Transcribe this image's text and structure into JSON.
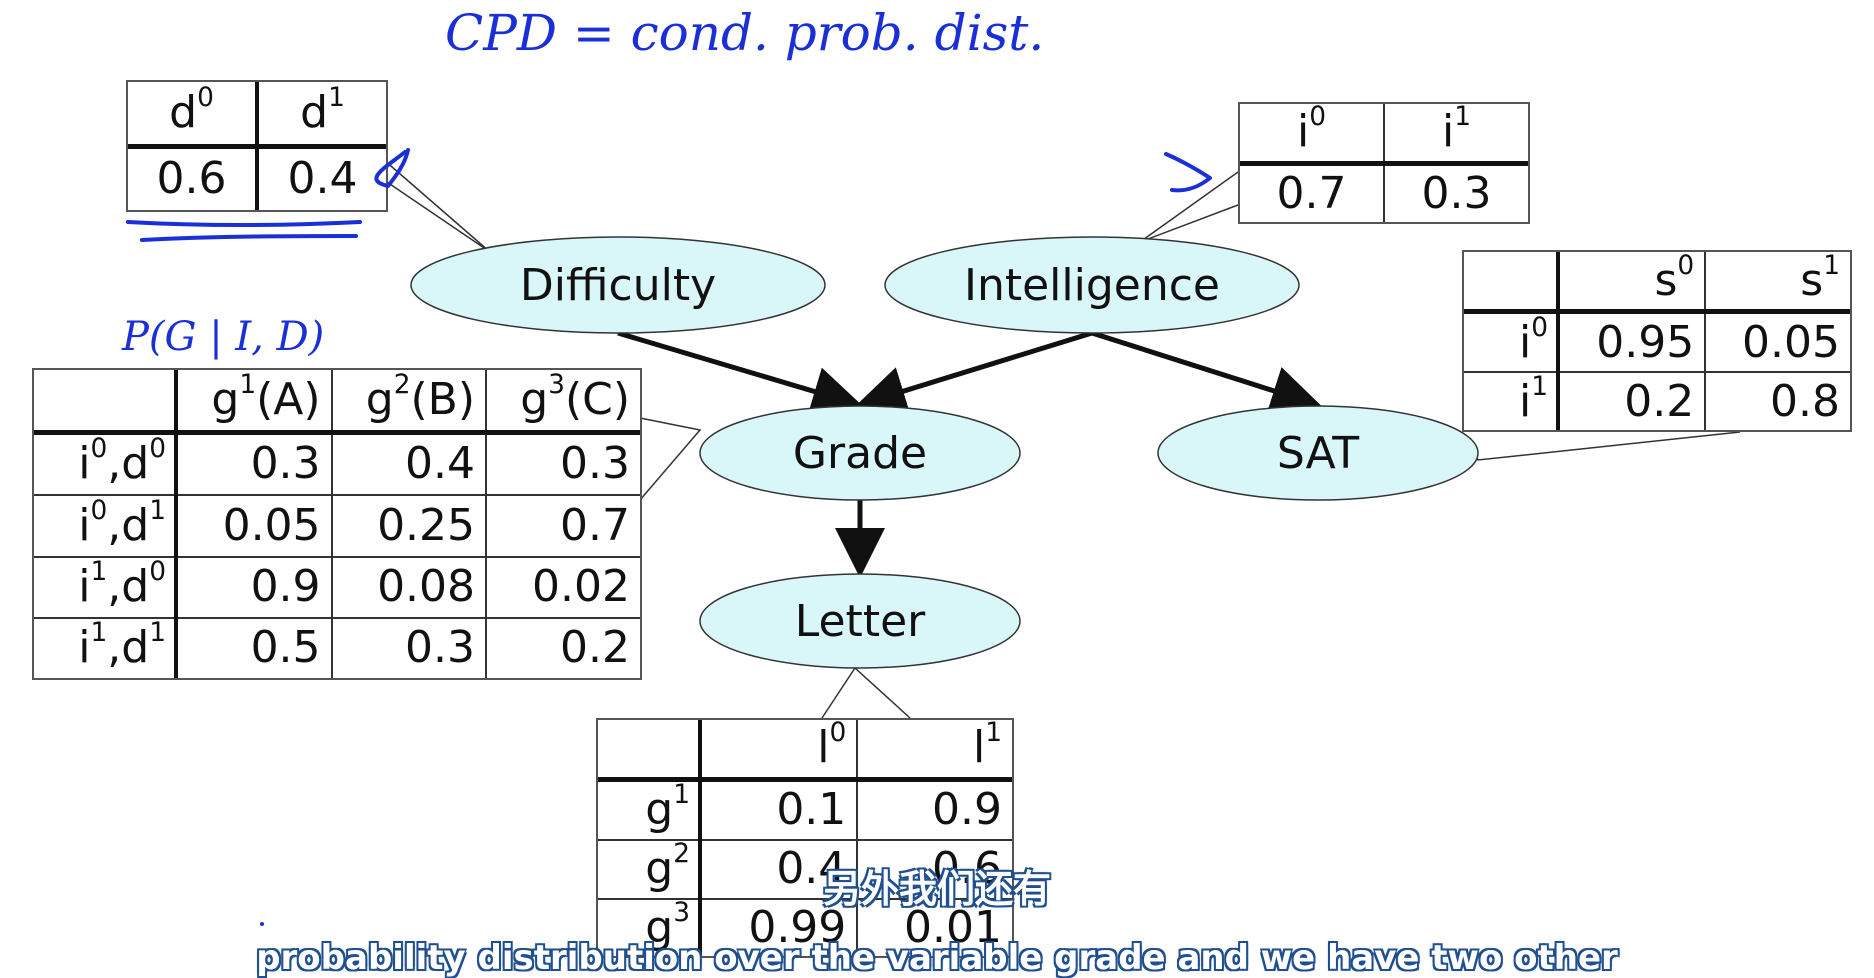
{
  "annotations": {
    "cpd_note": "CPD = cond. prob. dist.",
    "grade_cpd_note": "P(G | I, D)"
  },
  "nodes": {
    "difficulty": "Difficulty",
    "intelligence": "Intelligence",
    "grade": "Grade",
    "sat": "SAT",
    "letter": "Letter"
  },
  "tables": {
    "difficulty": {
      "headers": [
        {
          "base": "d",
          "sup": "0"
        },
        {
          "base": "d",
          "sup": "1"
        }
      ],
      "values": [
        "0.6",
        "0.4"
      ]
    },
    "intelligence": {
      "headers": [
        {
          "base": "i",
          "sup": "0"
        },
        {
          "base": "i",
          "sup": "1"
        }
      ],
      "values": [
        "0.7",
        "0.3"
      ]
    },
    "sat": {
      "headers": [
        {
          "base": "s",
          "sup": "0"
        },
        {
          "base": "s",
          "sup": "1"
        }
      ],
      "rows": [
        {
          "label": {
            "base": "i",
            "sup": "0"
          },
          "values": [
            "0.95",
            "0.05"
          ]
        },
        {
          "label": {
            "base": "i",
            "sup": "1"
          },
          "values": [
            "0.2",
            "0.8"
          ]
        }
      ]
    },
    "grade": {
      "headers": [
        {
          "base": "g",
          "sup": "1",
          "suffix": "(A)"
        },
        {
          "base": "g",
          "sup": "2",
          "suffix": "(B)"
        },
        {
          "base": "g",
          "sup": "3",
          "suffix": "(C)"
        }
      ],
      "rows": [
        {
          "label": {
            "a": "i",
            "asup": "0",
            "b": "d",
            "bsup": "0"
          },
          "values": [
            "0.3",
            "0.4",
            "0.3"
          ]
        },
        {
          "label": {
            "a": "i",
            "asup": "0",
            "b": "d",
            "bsup": "1"
          },
          "values": [
            "0.05",
            "0.25",
            "0.7"
          ]
        },
        {
          "label": {
            "a": "i",
            "asup": "1",
            "b": "d",
            "bsup": "0"
          },
          "values": [
            "0.9",
            "0.08",
            "0.02"
          ]
        },
        {
          "label": {
            "a": "i",
            "asup": "1",
            "b": "d",
            "bsup": "1"
          },
          "values": [
            "0.5",
            "0.3",
            "0.2"
          ]
        }
      ]
    },
    "letter": {
      "headers": [
        {
          "base": "l",
          "sup": "0"
        },
        {
          "base": "l",
          "sup": "1"
        }
      ],
      "rows": [
        {
          "label": {
            "base": "g",
            "sup": "1"
          },
          "values": [
            "0.1",
            "0.9"
          ]
        },
        {
          "label": {
            "base": "g",
            "sup": "2"
          },
          "values": [
            "0.4",
            "0.6"
          ]
        },
        {
          "label": {
            "base": "g",
            "sup": "3"
          },
          "values": [
            "0.99",
            "0.01"
          ]
        }
      ]
    }
  },
  "subtitles": {
    "zh": "另外我们还有",
    "en": "probability distribution over the variable grade and we have two other"
  },
  "colors": {
    "node_fill": "#d9f6f8",
    "annotation_ink": "#1a2fd6",
    "subtitle_outline": "#1f4f8f"
  }
}
